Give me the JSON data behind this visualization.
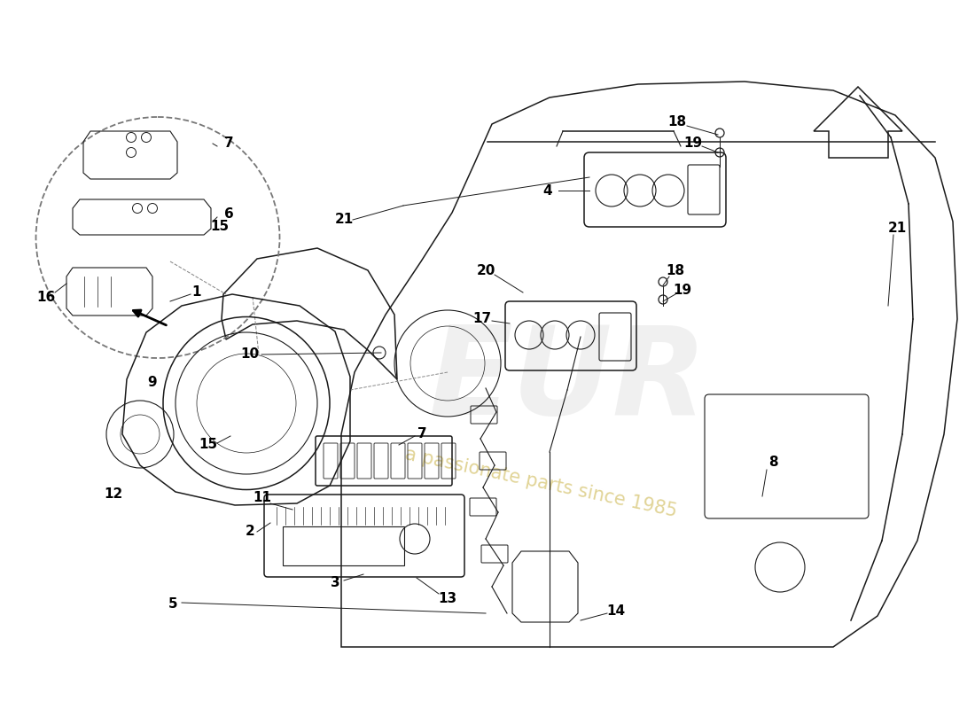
{
  "bg_color": "#ffffff",
  "line_color": "#1a1a1a",
  "label_fontsize": 11,
  "watermark_color": "#c8b040",
  "watermark_sub": "a passionate parts since 1985"
}
